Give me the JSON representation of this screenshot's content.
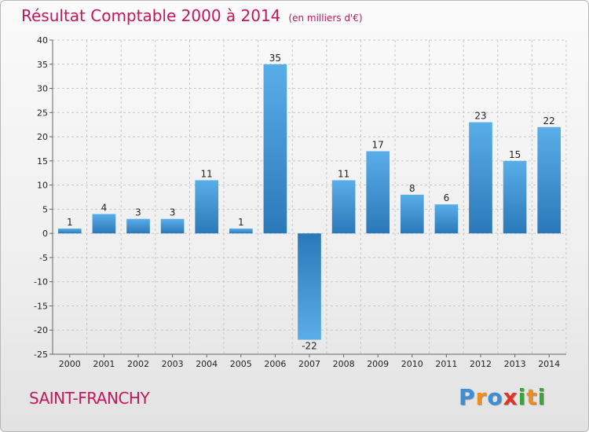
{
  "title": "Résultat Comptable 2000 à 2014",
  "unit": "(en milliers d'€)",
  "commune": "SAINT-FRANCHY",
  "logo": {
    "text": "Proxiti",
    "letters": [
      {
        "char": "P",
        "color": "#3a8fd6"
      },
      {
        "char": "r",
        "color": "#f28c1c"
      },
      {
        "char": "o",
        "color": "#3a8fd6"
      },
      {
        "char": "x",
        "color": "#e0332a"
      },
      {
        "char": "i",
        "color": "#3aa63a"
      },
      {
        "char": "t",
        "color": "#f28c1c"
      },
      {
        "char": "i",
        "color": "#3aa63a"
      }
    ]
  },
  "colors": {
    "title": "#c0185a",
    "bar_light": "#5aaee8",
    "bar_dark": "#2a78b8",
    "grid": "#c8c8c8"
  },
  "chart_data": {
    "type": "bar",
    "title": "Résultat Comptable 2000 à 2014",
    "subtitle": "(en milliers d'€)",
    "xlabel": "",
    "ylabel": "",
    "categories": [
      "2000",
      "2001",
      "2002",
      "2003",
      "2004",
      "2005",
      "2006",
      "2007",
      "2008",
      "2009",
      "2010",
      "2011",
      "2012",
      "2013",
      "2014"
    ],
    "values": [
      1,
      4,
      3,
      3,
      11,
      1,
      35,
      -22,
      11,
      17,
      8,
      6,
      23,
      15,
      22
    ],
    "ylim": [
      -25,
      40
    ],
    "yticks": [
      40,
      35,
      30,
      25,
      20,
      15,
      10,
      5,
      0,
      -5,
      -10,
      -15,
      -20,
      -25
    ],
    "grid": true
  }
}
